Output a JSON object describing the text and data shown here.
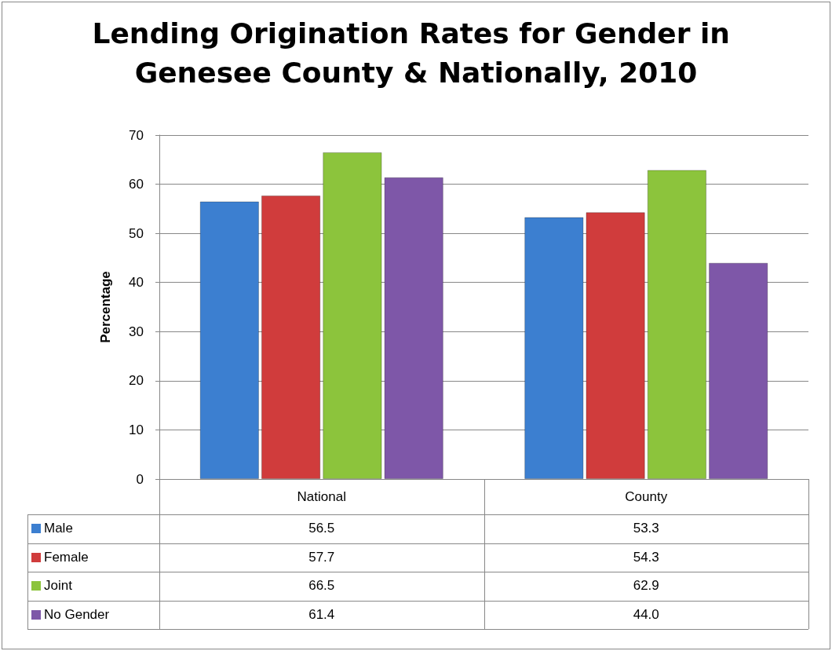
{
  "chart_data": {
    "type": "bar",
    "title": "Lending Origination Rates for Gender in Genesee County & Nationally, 2010",
    "ylabel": "Percentage",
    "categories": [
      "National",
      "County"
    ],
    "series": [
      {
        "name": "Male",
        "color": "#3c7fd0",
        "values": [
          56.5,
          53.3
        ],
        "value_labels": [
          "56.5",
          "53.3"
        ]
      },
      {
        "name": "Female",
        "color": "#d03c3c",
        "values": [
          57.7,
          54.3
        ],
        "value_labels": [
          "57.7",
          "54.3"
        ]
      },
      {
        "name": "Joint",
        "color": "#8cc43c",
        "values": [
          66.5,
          62.9
        ],
        "value_labels": [
          "66.5",
          "62.9"
        ]
      },
      {
        "name": "No Gender",
        "color": "#7e57a8",
        "values": [
          61.4,
          44.0
        ],
        "value_labels": [
          "61.4",
          "44.0"
        ]
      }
    ],
    "ylim": [
      0,
      70
    ],
    "yticks": [
      0,
      10,
      20,
      30,
      40,
      50,
      60,
      70
    ],
    "grid": "y",
    "legend": "bottom"
  }
}
